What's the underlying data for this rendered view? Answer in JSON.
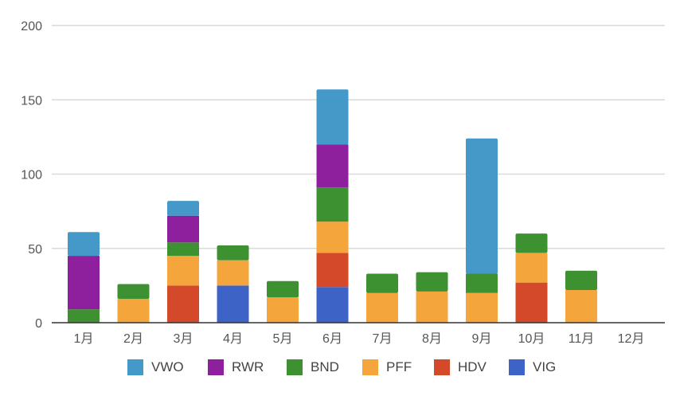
{
  "chart_data": {
    "type": "bar",
    "stacked": true,
    "title": "",
    "xlabel": "",
    "ylabel": "",
    "ylim": [
      0,
      200
    ],
    "yticks": [
      0,
      50,
      100,
      150,
      200
    ],
    "grid": true,
    "legend": "bottom",
    "categories": [
      "1月",
      "2月",
      "3月",
      "4月",
      "5月",
      "6月",
      "7月",
      "8月",
      "9月",
      "10月",
      "11月",
      "12月"
    ],
    "series": [
      {
        "name": "VIG",
        "color": "#3d63c6",
        "values": [
          0,
          0,
          0,
          25,
          0,
          24,
          0,
          0,
          0,
          0,
          0,
          0
        ]
      },
      {
        "name": "HDV",
        "color": "#d3492a",
        "values": [
          0,
          0,
          25,
          0,
          0,
          23,
          0,
          0,
          0,
          27,
          0,
          0
        ]
      },
      {
        "name": "PFF",
        "color": "#f4a53b",
        "values": [
          0,
          16,
          20,
          17,
          17,
          21,
          20,
          21,
          20,
          20,
          22,
          0
        ]
      },
      {
        "name": "BND",
        "color": "#3e9130",
        "values": [
          9,
          10,
          9,
          10,
          11,
          23,
          13,
          13,
          13,
          13,
          13,
          0
        ]
      },
      {
        "name": "RWR",
        "color": "#8e1f9d",
        "values": [
          36,
          0,
          18,
          0,
          0,
          29,
          0,
          0,
          0,
          0,
          0,
          0
        ]
      },
      {
        "name": "VWO",
        "color": "#4499c8",
        "values": [
          16,
          0,
          10,
          0,
          0,
          37,
          0,
          0,
          91,
          0,
          0,
          0
        ]
      }
    ],
    "legend_order": [
      "VWO",
      "RWR",
      "BND",
      "PFF",
      "HDV",
      "VIG"
    ]
  }
}
